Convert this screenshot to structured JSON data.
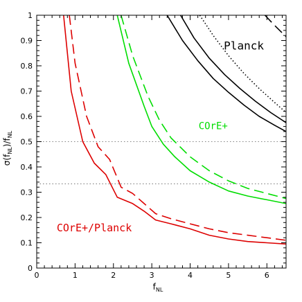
{
  "chart_data": {
    "type": "line",
    "x_label": "f_NL",
    "y_label": "σ(f_NL)/f_NL",
    "xlim": [
      0,
      6.5
    ],
    "ylim": [
      0,
      1
    ],
    "x_ticks": [
      0,
      1,
      2,
      3,
      4,
      5,
      6
    ],
    "y_ticks": [
      0,
      0.1,
      0.2,
      0.3,
      0.4,
      0.5,
      0.6,
      0.7,
      0.8,
      0.9,
      1
    ],
    "x_tick_labels": [
      "0",
      "1",
      "2",
      "3",
      "4",
      "5",
      "6"
    ],
    "y_tick_labels": [
      "0",
      "0.1",
      "0.2",
      "0.3",
      "0.4",
      "0.5",
      "0.6",
      "0.7",
      "0.8",
      "0.9",
      "1"
    ],
    "reference_lines": [
      {
        "y": 0.5,
        "style": "dotted",
        "color": "#808080"
      },
      {
        "y": 0.333,
        "style": "dotted",
        "color": "#808080"
      }
    ],
    "annotations": [
      {
        "text": "Planck",
        "x": 5.4,
        "y": 0.865,
        "color": "#000000"
      },
      {
        "text": "COrE+",
        "x": 4.6,
        "y": 0.55,
        "color": "#00dd00"
      },
      {
        "text": "COrE+/Planck",
        "x": 1.5,
        "y": 0.145,
        "color": "#dd0000"
      }
    ],
    "series": [
      {
        "style": "solid",
        "color": "#000000",
        "x": [
          3.4,
          3.8,
          4.2,
          4.6,
          5.0,
          5.4,
          5.8,
          6.2,
          6.5
        ],
        "y": [
          1.0,
          0.9,
          0.82,
          0.75,
          0.695,
          0.645,
          0.6,
          0.565,
          0.54
        ]
      },
      {
        "style": "solid",
        "color": "#000000",
        "x": [
          3.75,
          4.1,
          4.5,
          4.9,
          5.3,
          5.7,
          6.1,
          6.5
        ],
        "y": [
          1.0,
          0.91,
          0.83,
          0.765,
          0.71,
          0.66,
          0.615,
          0.575
        ]
      },
      {
        "style": "dotted",
        "color": "#000000",
        "x": [
          4.25,
          4.6,
          5.0,
          5.4,
          5.8,
          6.2,
          6.5
        ],
        "y": [
          1.0,
          0.92,
          0.84,
          0.77,
          0.71,
          0.655,
          0.615
        ]
      },
      {
        "style": "dashed",
        "color": "#000000",
        "x": [
          5.95,
          6.2,
          6.5
        ],
        "y": [
          1.0,
          0.96,
          0.915
        ]
      },
      {
        "style": "solid",
        "color": "#00dd00",
        "x": [
          2.1,
          2.4,
          2.8,
          3.0,
          3.3,
          3.6,
          4.0,
          4.5,
          5.0,
          5.5,
          6.0,
          6.5
        ],
        "y": [
          1.0,
          0.81,
          0.64,
          0.56,
          0.49,
          0.44,
          0.385,
          0.34,
          0.305,
          0.285,
          0.27,
          0.255
        ]
      },
      {
        "style": "dashed",
        "color": "#00dd00",
        "x": [
          2.2,
          2.5,
          2.9,
          3.2,
          3.5,
          4.0,
          4.5,
          5.0,
          5.5,
          6.0,
          6.5
        ],
        "y": [
          1.0,
          0.84,
          0.68,
          0.585,
          0.515,
          0.44,
          0.385,
          0.345,
          0.315,
          0.295,
          0.275
        ]
      },
      {
        "style": "solid",
        "color": "#dd0000",
        "x": [
          0.7,
          0.9,
          1.2,
          1.5,
          1.8,
          2.1,
          2.5,
          2.8,
          3.1,
          3.5,
          4.0,
          4.5,
          5.0,
          5.5,
          6.0,
          6.5
        ],
        "y": [
          1.0,
          0.7,
          0.5,
          0.415,
          0.37,
          0.28,
          0.255,
          0.225,
          0.19,
          0.175,
          0.155,
          0.13,
          0.115,
          0.105,
          0.1,
          0.095
        ]
      },
      {
        "style": "dashed",
        "color": "#dd0000",
        "x": [
          0.85,
          1.0,
          1.3,
          1.6,
          1.9,
          2.2,
          2.5,
          2.8,
          3.1,
          3.5,
          4.0,
          4.5,
          5.0,
          5.5,
          6.0,
          6.5
        ],
        "y": [
          1.0,
          0.81,
          0.6,
          0.48,
          0.43,
          0.32,
          0.295,
          0.255,
          0.215,
          0.195,
          0.175,
          0.155,
          0.14,
          0.13,
          0.12,
          0.11
        ]
      }
    ]
  }
}
